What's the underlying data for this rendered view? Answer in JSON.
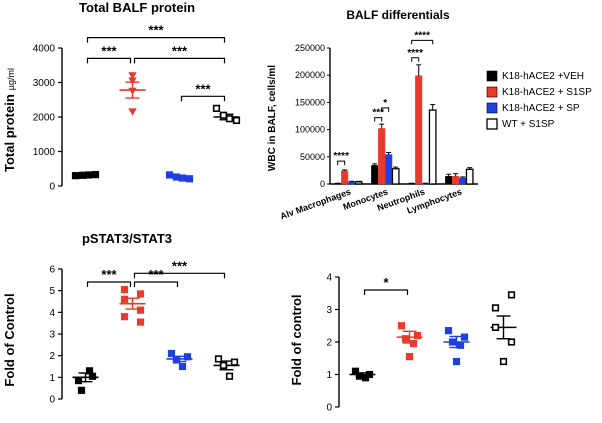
{
  "colors": {
    "black": "#000000",
    "red": "#e8392c",
    "blue": "#1f3fe0",
    "white": "#ffffff",
    "axis": "#000000"
  },
  "chart_data": [
    {
      "id": "p1",
      "type": "scatter",
      "title": "Total BALF protein",
      "xlabel": "",
      "ylabel": "Total protein",
      "ylabel_unit": "µg/ml",
      "ylim": [
        0,
        4000
      ],
      "yticks": [
        0,
        1000,
        2000,
        3000,
        4000
      ],
      "groups": [
        {
          "name": "K18-hACE2 +VEH",
          "marker": "filled-square",
          "color": "black",
          "points": [
            300,
            310,
            320,
            330
          ],
          "mean": 315,
          "sem": 20
        },
        {
          "name": "K18-hACE2 + S1SP",
          "marker": "filled-triangle-down",
          "color": "red",
          "points": [
            3200,
            3050,
            2750,
            2150
          ],
          "mean": 2780,
          "sem": 230
        },
        {
          "name": "K18-hACE2 + SP",
          "marker": "filled-square",
          "color": "blue",
          "points": [
            320,
            260,
            230,
            210
          ],
          "mean": 255,
          "sem": 30
        },
        {
          "name": "WT + S1SP",
          "marker": "open-square",
          "color": "black",
          "points": [
            2250,
            2050,
            1950,
            1900
          ],
          "mean": 2000,
          "sem": 80
        }
      ],
      "significance": [
        {
          "from": 0,
          "to": 3,
          "label": "***",
          "level": 4300
        },
        {
          "from": 0,
          "to": 1,
          "label": "***",
          "level": 3700
        },
        {
          "from": 1,
          "to": 3,
          "label": "***",
          "level": 3700
        },
        {
          "from": 2,
          "to": 3,
          "label": "***",
          "level": 2600
        }
      ]
    },
    {
      "id": "p2",
      "type": "bar",
      "title": "BALF differentials",
      "xlabel": "",
      "ylabel": "WBC in BALF, cells/ml",
      "ylim": [
        0,
        250000
      ],
      "yticks": [
        0,
        50000,
        100000,
        150000,
        200000,
        250000
      ],
      "categories": [
        "Alv Macrophages",
        "Monocytes",
        "Neutrophils",
        "Lymphocytes"
      ],
      "series": [
        {
          "name": "K18-hACE2 +VEH",
          "color": "black",
          "values": [
            1000,
            34000,
            1000,
            14000
          ],
          "errors": [
            500,
            3000,
            500,
            4000
          ]
        },
        {
          "name": "K18-hACE2 + S1SP",
          "color": "red",
          "values": [
            24000,
            102000,
            199000,
            14000
          ],
          "errors": [
            2000,
            8000,
            20000,
            5000
          ]
        },
        {
          "name": "K18-hACE2 + SP",
          "color": "blue",
          "values": [
            4000,
            54000,
            1000,
            11000
          ],
          "errors": [
            1000,
            4000,
            500,
            2000
          ]
        },
        {
          "name": "WT + S1SP",
          "color": "white",
          "values": [
            4000,
            28000,
            136000,
            27000
          ],
          "errors": [
            1000,
            3000,
            10000,
            3000
          ]
        }
      ],
      "legend_position": "right",
      "significance": [
        {
          "category": 0,
          "from": 0,
          "to": 1,
          "label": "****",
          "level": 42000
        },
        {
          "category": 1,
          "from": 0,
          "to": 1,
          "label": "***",
          "level": 122000
        },
        {
          "category": 1,
          "from": 1,
          "to": 2,
          "label": "*",
          "level": 140000
        },
        {
          "category": 2,
          "from": 0,
          "to": 1,
          "label": "****",
          "level": 232000
        },
        {
          "category": 2,
          "from": 0,
          "to": 3,
          "label": "****",
          "level": 264000
        }
      ]
    },
    {
      "id": "p3",
      "type": "scatter",
      "title": "pSTAT3/STAT3",
      "xlabel": "",
      "ylabel": "Fold of Control",
      "ylim": [
        0,
        6
      ],
      "yticks": [
        0,
        1,
        2,
        3,
        4,
        5,
        6
      ],
      "groups": [
        {
          "name": "K18-hACE2 +VEH",
          "marker": "filled-square",
          "color": "black",
          "points": [
            0.4,
            0.85,
            1.05,
            1.3
          ],
          "mean": 1.0,
          "sem": 0.2
        },
        {
          "name": "K18-hACE2 + S1SP",
          "marker": "filled-square",
          "color": "red",
          "points": [
            5.05,
            4.85,
            4.6,
            4.1,
            3.8,
            3.55
          ],
          "mean": 4.4,
          "sem": 0.25
        },
        {
          "name": "K18-hACE2 + SP",
          "marker": "filled-square",
          "color": "blue",
          "points": [
            2.1,
            1.95,
            1.8,
            1.5
          ],
          "mean": 1.85,
          "sem": 0.12
        },
        {
          "name": "WT + S1SP",
          "marker": "open-square",
          "color": "black",
          "points": [
            1.85,
            1.7,
            1.55,
            1.05
          ],
          "mean": 1.55,
          "sem": 0.2
        }
      ],
      "significance": [
        {
          "from": 0,
          "to": 1,
          "label": "***",
          "level": 5.4
        },
        {
          "from": 1,
          "to": 2,
          "label": "***",
          "level": 5.4
        },
        {
          "from": 1,
          "to": 3,
          "label": "***",
          "level": 5.8
        }
      ]
    },
    {
      "id": "p4",
      "type": "scatter",
      "title": "",
      "xlabel": "",
      "ylabel": "Fold of control",
      "ylim": [
        0,
        4
      ],
      "yticks": [
        0,
        1,
        2,
        3,
        4
      ],
      "groups": [
        {
          "name": "K18-hACE2 +VEH",
          "marker": "filled-square",
          "color": "black",
          "points": [
            1.1,
            1.0,
            0.95,
            0.9
          ],
          "mean": 1.0,
          "sem": 0.05
        },
        {
          "name": "K18-hACE2 + S1SP",
          "marker": "filled-square",
          "color": "red",
          "points": [
            2.5,
            2.2,
            2.1,
            1.95,
            1.55
          ],
          "mean": 2.15,
          "sem": 0.18
        },
        {
          "name": "K18-hACE2 + SP",
          "marker": "filled-square",
          "color": "blue",
          "points": [
            2.35,
            2.15,
            2.0,
            1.9,
            1.4
          ],
          "mean": 2.0,
          "sem": 0.17
        },
        {
          "name": "WT + S1SP",
          "marker": "open-square",
          "color": "black",
          "points": [
            3.45,
            3.05,
            2.45,
            2.0,
            1.4
          ],
          "mean": 2.45,
          "sem": 0.35
        }
      ],
      "significance": [
        {
          "from": 0,
          "to": 1,
          "label": "*",
          "level": 3.6
        }
      ]
    }
  ]
}
